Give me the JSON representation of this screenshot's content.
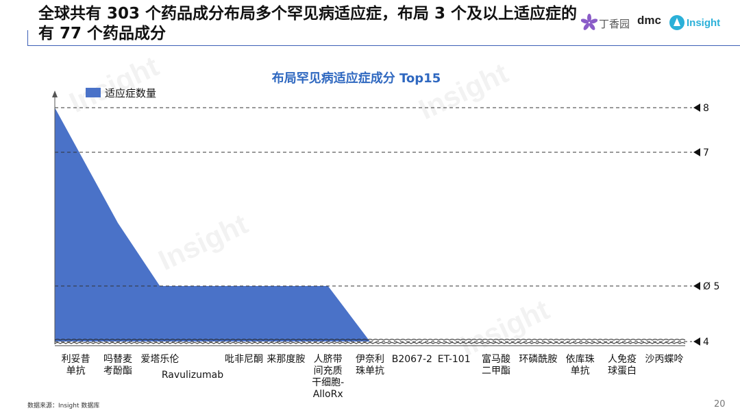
{
  "slide": {
    "title": "全球共有 303 个药品成分布局多个罕见病适应症，布局 3 个及以上适应症的有 77 个药品成分",
    "source": "数据来源：Insight 数据库",
    "page_number": "20",
    "watermark": "Insight"
  },
  "logos": {
    "dxy": "丁香园",
    "dmc": "dmc",
    "insight": "Insight"
  },
  "colors": {
    "area": "#4a72c8",
    "title_blue": "#2f68c0",
    "rule": "#3b5eb5"
  },
  "chart_data": {
    "type": "area",
    "title": "布局罕见病适应症成分 Top15",
    "series": [
      {
        "name": "适应症数量",
        "values": [
          8,
          6,
          5,
          5,
          5,
          5,
          5,
          4,
          4,
          4,
          4,
          4,
          4,
          4,
          4
        ]
      }
    ],
    "categories": [
      "利妥昔单抗",
      "吗替麦考酚酯",
      "爱塔乐伦",
      "Ravulizumab",
      "吡非尼酮",
      "来那度胺",
      "人脐带间充质干细胞-AlloRx",
      "伊奈利珠单抗",
      "B2067-2",
      "ET-101",
      "富马酸二甲酯",
      "环磷酰胺",
      "依库珠单抗",
      "人免疫球蛋白",
      "沙丙蝶呤"
    ],
    "category_lines": [
      [
        "利妥昔",
        "单抗"
      ],
      [
        "吗替麦",
        "考酚酯"
      ],
      [
        "爱塔乐伦"
      ],
      [
        "Ravulizumab"
      ],
      [
        "吡非尼酮"
      ],
      [
        "来那度胺"
      ],
      [
        "人脐带",
        "间充质",
        "干细胞-",
        "AlloRx"
      ],
      [
        "伊奈利",
        "珠单抗"
      ],
      [
        "B2067-2"
      ],
      [
        "ET-101"
      ],
      [
        "富马酸",
        "二甲酯"
      ],
      [
        "环磷酰胺"
      ],
      [
        "依库珠",
        "单抗"
      ],
      [
        "人免疫",
        "球蛋白"
      ],
      [
        "沙丙蝶呤"
      ]
    ],
    "reference_lines": [
      {
        "value": 8,
        "label": "8"
      },
      {
        "value": 7,
        "label": "7"
      },
      {
        "value": 5,
        "label": "Ø 5"
      },
      {
        "value": 4,
        "label": "4"
      }
    ],
    "axis_break": true,
    "legend": "top-left",
    "grid": false
  }
}
